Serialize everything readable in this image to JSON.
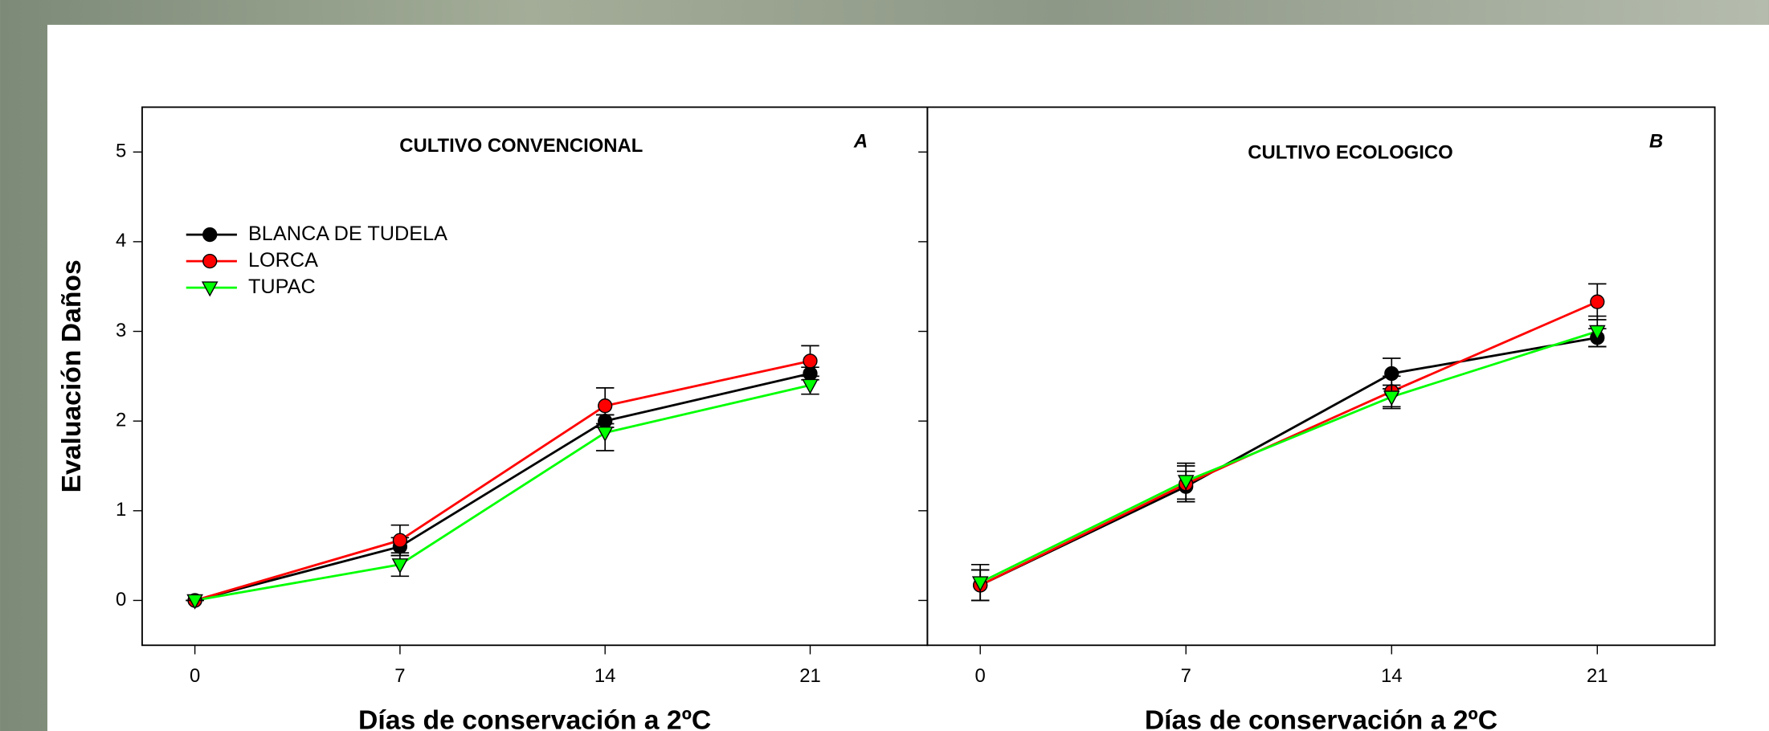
{
  "chart_data": [
    {
      "type": "line",
      "title": "CULTIVO CONVENCIONAL",
      "panel_label": "A",
      "y_label": "Evaluación Daños",
      "x_label": "Días de conservación a 2ºC",
      "x": [
        0,
        7,
        14,
        21
      ],
      "xlim": [
        -1.8,
        25
      ],
      "xticks": [
        0,
        7,
        14,
        21
      ],
      "ylim": [
        -0.5,
        5.5
      ],
      "yticks": [
        0,
        1,
        2,
        3,
        4,
        5
      ],
      "show_ytick_labels": true,
      "series": [
        {
          "name": "BLANCA DE TUDELA",
          "color": "#000000",
          "marker": "circle",
          "values": [
            0,
            0.6,
            2.0,
            2.53
          ],
          "errors": [
            0,
            0.1,
            0.07,
            0.07
          ]
        },
        {
          "name": "LORCA",
          "color": "#ff0000",
          "marker": "circle",
          "values": [
            0,
            0.67,
            2.17,
            2.67
          ],
          "errors": [
            0,
            0.17,
            0.2,
            0.17
          ]
        },
        {
          "name": "TUPAC",
          "color": "#00ff00",
          "marker": "triangle-down",
          "values": [
            0,
            0.4,
            1.87,
            2.4
          ],
          "errors": [
            0,
            0.13,
            0.2,
            0.1
          ]
        }
      ]
    },
    {
      "type": "line",
      "title": "CULTIVO ECOLOGICO",
      "panel_label": "B",
      "x_label": "Días de conservación a 2ºC",
      "x": [
        0,
        7,
        14,
        21
      ],
      "xlim": [
        -1.8,
        25
      ],
      "xticks": [
        0,
        7,
        14,
        21
      ],
      "ylim": [
        -0.5,
        5.5
      ],
      "yticks": [
        0,
        1,
        2,
        3,
        4,
        5
      ],
      "show_ytick_labels": false,
      "series": [
        {
          "color": "#000000",
          "marker": "circle",
          "values": [
            0.17,
            1.27,
            2.53,
            2.93
          ],
          "errors": [
            0.17,
            0.17,
            0.17,
            0.1
          ]
        },
        {
          "color": "#ff0000",
          "marker": "circle",
          "values": [
            0.17,
            1.3,
            2.33,
            3.33
          ],
          "errors": [
            0.17,
            0.2,
            0.17,
            0.2
          ]
        },
        {
          "color": "#00ff00",
          "marker": "triangle-down",
          "values": [
            0.2,
            1.33,
            2.27,
            3.0
          ],
          "errors": [
            0.2,
            0.2,
            0.13,
            0.17
          ]
        }
      ]
    }
  ]
}
